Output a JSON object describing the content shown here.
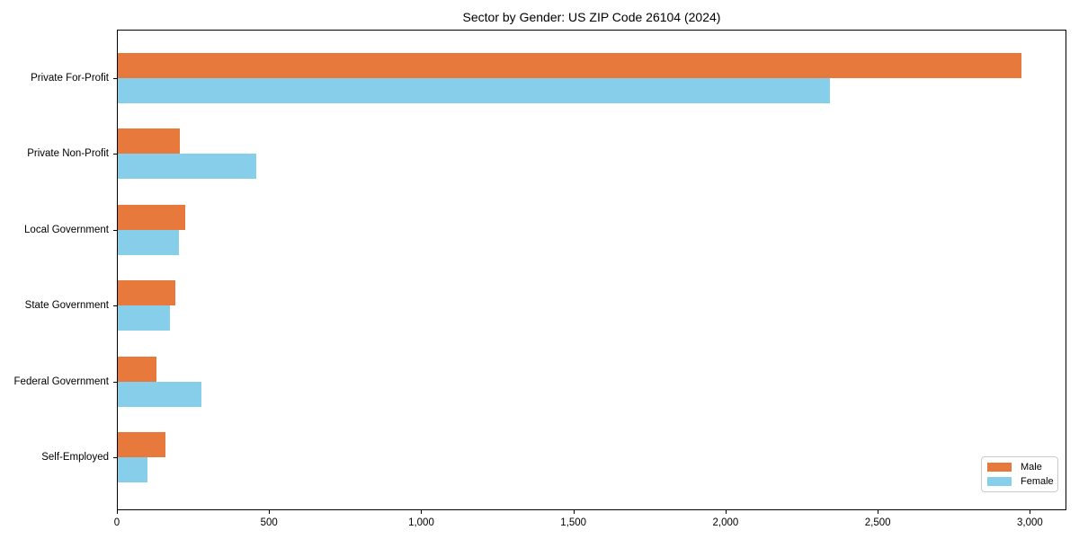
{
  "chart_data": {
    "type": "bar",
    "orientation": "horizontal",
    "title": "Sector by Gender: US ZIP Code 26104 (2024)",
    "categories": [
      "Private For-Profit",
      "Private Non-Profit",
      "Local Government",
      "State Government",
      "Federal Government",
      "Self-Employed"
    ],
    "series": [
      {
        "name": "Male",
        "color": "#e8793d",
        "values": [
          2970,
          205,
          222,
          190,
          126,
          158
        ]
      },
      {
        "name": "Female",
        "color": "#87ceeb",
        "values": [
          2340,
          455,
          200,
          170,
          274,
          97
        ]
      }
    ],
    "xlabel": "",
    "ylabel": "",
    "xlim": [
      0,
      3120
    ],
    "x_ticks": [
      0,
      500,
      1000,
      1500,
      2000,
      2500,
      3000
    ],
    "x_tick_labels": [
      "0",
      "500",
      "1,000",
      "1,500",
      "2,000",
      "2,500",
      "3,000"
    ],
    "grid": false,
    "legend": {
      "position": "lower right",
      "entries": [
        "Male",
        "Female"
      ]
    }
  }
}
